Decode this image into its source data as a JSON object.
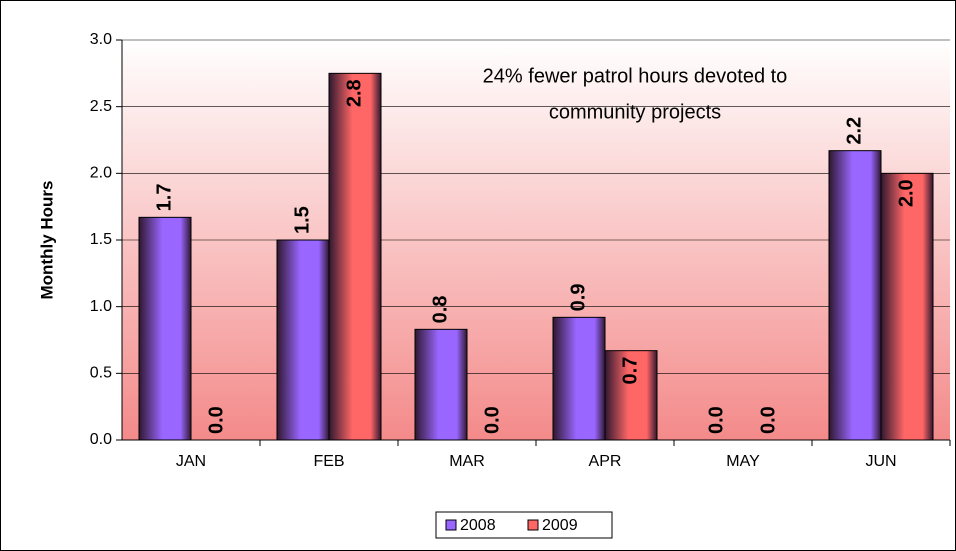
{
  "chart_data": {
    "type": "bar",
    "annotation": [
      "24% fewer patrol hours devoted to",
      "community projects"
    ],
    "y_label": "Monthly Hours",
    "categories": [
      "JAN",
      "FEB",
      "MAR",
      "APR",
      "MAY",
      "JUN"
    ],
    "series": [
      {
        "name": "2008",
        "color": "#9966ff",
        "values": [
          1.67,
          1.5,
          0.83,
          0.92,
          0,
          2.17
        ],
        "value_labels": [
          "1.7",
          "1.5",
          "0.8",
          "0.9",
          "0.0",
          "2.2"
        ]
      },
      {
        "name": "2009",
        "color": "#ff6666",
        "values": [
          0,
          2.75,
          0,
          0.67,
          0,
          2.0
        ],
        "value_labels": [
          "0.0",
          "2.8",
          "0.0",
          "0.7",
          "0.0",
          "2.0"
        ]
      }
    ],
    "ylim": [
      0,
      3
    ],
    "yticks": [
      {
        "value": 0,
        "label": "0.0"
      },
      {
        "value": 0.5,
        "label": "0.5"
      },
      {
        "value": 1,
        "label": "1.0"
      },
      {
        "value": 1.5,
        "label": "1.5"
      },
      {
        "value": 2,
        "label": "2.0"
      },
      {
        "value": 2.5,
        "label": "2.5"
      },
      {
        "value": 3,
        "label": "3.0"
      }
    ],
    "grid": true,
    "legend": "bottom"
  }
}
